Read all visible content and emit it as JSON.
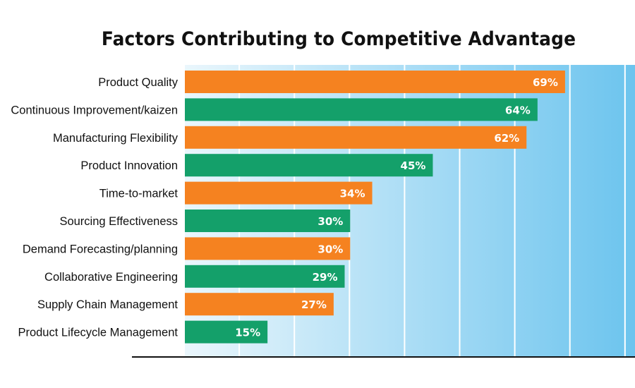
{
  "chart_data": {
    "type": "bar",
    "orientation": "horizontal",
    "title": "Factors Contributing to Competitive Advantage",
    "xlabel": "",
    "ylabel": "",
    "xlim": [
      0,
      80
    ],
    "grid": true,
    "gridlines_at": [
      10,
      20,
      30,
      40,
      50,
      60,
      70,
      80
    ],
    "categories": [
      "Product Quality",
      "Continuous Improvement/kaizen",
      "Manufacturing Flexibility",
      "Product Innovation",
      "Time-to-market",
      "Sourcing Effectiveness",
      "Demand Forecasting/planning",
      "Collaborative Engineering",
      "Supply Chain Management",
      "Product Lifecycle Management"
    ],
    "values": [
      69,
      64,
      62,
      45,
      34,
      30,
      30,
      29,
      27,
      15
    ],
    "value_labels": [
      "69%",
      "64%",
      "62%",
      "45%",
      "34%",
      "30%",
      "30%",
      "29%",
      "27%",
      "15%"
    ],
    "bar_colors": [
      "#F58220",
      "#14A06A",
      "#F58220",
      "#14A06A",
      "#F58220",
      "#14A06A",
      "#F58220",
      "#14A06A",
      "#F58220",
      "#14A06A"
    ],
    "background_gradient": [
      "#EAF6FC",
      "#6CC4EE"
    ]
  }
}
